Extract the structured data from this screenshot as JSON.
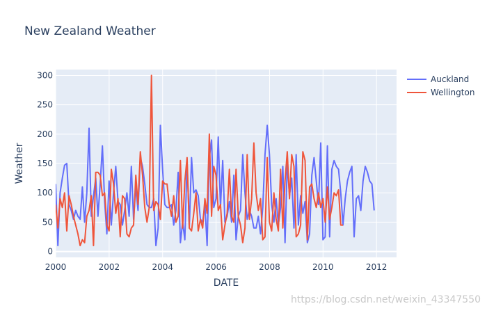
{
  "chart_data": {
    "type": "line",
    "title": "New Zealand Weather",
    "xlabel": "DATE",
    "ylabel": "Weather",
    "xlim": [
      2000.0,
      2012.75
    ],
    "ylim": [
      -10,
      310
    ],
    "x_ticks": [
      2000,
      2002,
      2004,
      2006,
      2008,
      2010,
      2012
    ],
    "y_ticks": [
      0,
      50,
      100,
      150,
      200,
      250,
      300
    ],
    "x_start": 2000.0,
    "x_step": 0.0833,
    "legend_position": "top-right",
    "series": [
      {
        "name": "Auckland",
        "color": "#636efa",
        "values": [
          115,
          10,
          100,
          125,
          147,
          150,
          80,
          70,
          55,
          70,
          60,
          55,
          110,
          50,
          100,
          210,
          60,
          95,
          125,
          60,
          115,
          180,
          85,
          30,
          120,
          45,
          100,
          145,
          85,
          80,
          45,
          70,
          100,
          60,
          145,
          55,
          110,
          70,
          160,
          145,
          115,
          80,
          75,
          75,
          90,
          10,
          40,
          215,
          140,
          80,
          75,
          75,
          80,
          45,
          70,
          135,
          15,
          50,
          20,
          155,
          40,
          160,
          100,
          105,
          95,
          55,
          50,
          80,
          10,
          160,
          190,
          75,
          90,
          195,
          75,
          155,
          50,
          60,
          85,
          50,
          130,
          20,
          60,
          70,
          165,
          100,
          55,
          70,
          60,
          40,
          40,
          60,
          30,
          75,
          165,
          215,
          165,
          80,
          50,
          90,
          45,
          75,
          145,
          15,
          150,
          95,
          125,
          40,
          165,
          45,
          95,
          65,
          85,
          15,
          30,
          130,
          160,
          120,
          80,
          185,
          20,
          25,
          180,
          25,
          140,
          155,
          145,
          140,
          100,
          45,
          90,
          120,
          135,
          145,
          25,
          90,
          95,
          70,
          120,
          145,
          135,
          120,
          115,
          70
        ]
      },
      {
        "name": "Wellington",
        "color": "#ef553b",
        "values": [
          80,
          40,
          90,
          75,
          100,
          35,
          95,
          80,
          60,
          45,
          30,
          10,
          20,
          15,
          60,
          70,
          95,
          10,
          135,
          135,
          130,
          95,
          100,
          45,
          35,
          140,
          115,
          65,
          90,
          25,
          95,
          90,
          30,
          25,
          40,
          45,
          130,
          80,
          170,
          130,
          75,
          50,
          75,
          300,
          70,
          85,
          80,
          55,
          120,
          115,
          115,
          80,
          60,
          95,
          50,
          60,
          155,
          40,
          120,
          160,
          40,
          35,
          65,
          100,
          35,
          55,
          40,
          90,
          65,
          200,
          60,
          145,
          130,
          70,
          80,
          20,
          45,
          65,
          140,
          60,
          50,
          140,
          60,
          45,
          15,
          40,
          165,
          55,
          90,
          185,
          100,
          70,
          90,
          20,
          25,
          160,
          50,
          35,
          100,
          55,
          35,
          140,
          40,
          120,
          170,
          90,
          165,
          145,
          25,
          30,
          45,
          170,
          155,
          20,
          110,
          115,
          90,
          75,
          100,
          75,
          90,
          50,
          110,
          55,
          75,
          100,
          95,
          105,
          45,
          45
        ]
      }
    ]
  },
  "watermark": "https://blog.csdn.net/weixin_43347550"
}
